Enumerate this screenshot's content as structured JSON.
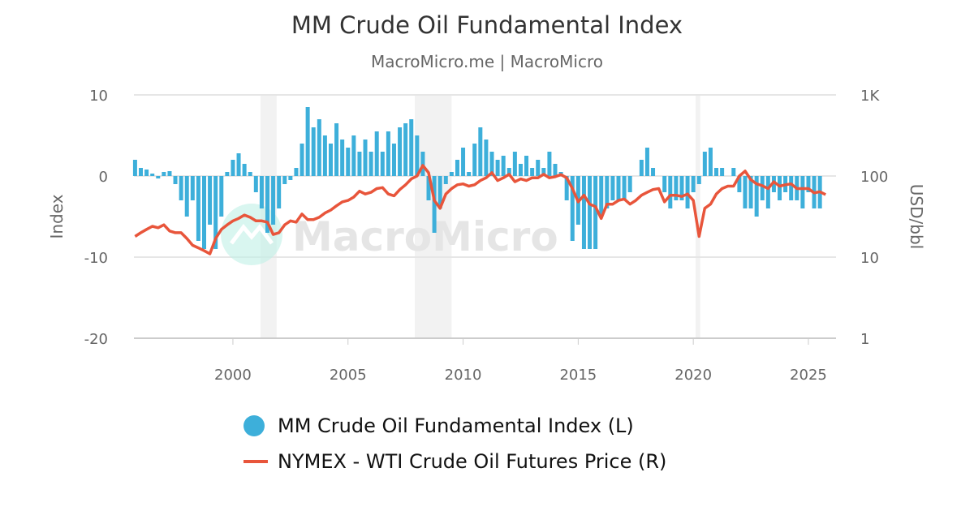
{
  "chart_data": {
    "type": "bar+line",
    "title": "MM Crude Oil Fundamental Index",
    "subtitle": "MacroMicro.me | MacroMicro",
    "watermark": "MacroMicro",
    "ylabel_left": "Index",
    "ylabel_right": "USD/bbl",
    "ylim_left": [
      -20,
      10
    ],
    "yticks_left": [
      "10",
      "0",
      "-10",
      "-20"
    ],
    "ylim_right": [
      1,
      1000
    ],
    "right_scale": "log",
    "yticks_right": [
      "1K",
      "100",
      "10",
      "1"
    ],
    "xlim": [
      1995.7,
      2026.2
    ],
    "xticks": [
      "2000",
      "2005",
      "2010",
      "2015",
      "2020",
      "2025"
    ],
    "grid": true,
    "legend_placement": "bottom",
    "recessions": [
      [
        2001.2,
        2001.9
      ],
      [
        2007.9,
        2009.5
      ],
      [
        2020.1,
        2020.3
      ]
    ],
    "colors": {
      "bars": "#3dafda",
      "line": "#e8553b",
      "recession": "#f2f2f2",
      "grid": "#e6e6e6"
    },
    "x_start": 1995.75,
    "x_step": 0.25,
    "series": [
      {
        "name": "MM Crude Oil Fundamental Index (L)",
        "type": "bar",
        "axis": "left",
        "values": [
          2,
          1,
          0.8,
          0.3,
          -0.3,
          0.5,
          0.6,
          -1,
          -3,
          -5,
          -3,
          -8,
          -9,
          -6,
          -9,
          -5,
          0.5,
          2,
          2.8,
          1.5,
          0.5,
          -2,
          -4,
          -7,
          -6,
          -4,
          -1,
          -0.5,
          1,
          4,
          8.5,
          6,
          7,
          5,
          4,
          6.5,
          4.5,
          3.5,
          5,
          3,
          4.5,
          3,
          5.5,
          3,
          5.5,
          4,
          6,
          6.5,
          7,
          5,
          3,
          -3,
          -7,
          -4,
          -1,
          0.5,
          2,
          3.5,
          0.5,
          4,
          6,
          4.5,
          3,
          2,
          2.5,
          1,
          3,
          1.5,
          2.5,
          1,
          2,
          1,
          3,
          1.5,
          0.5,
          -3,
          -8,
          -6,
          -9,
          -9,
          -9,
          -5,
          -4,
          -3,
          -3,
          -3,
          -2,
          0,
          2,
          3.5,
          1,
          0,
          -2,
          -4,
          -3,
          -3,
          -4,
          -2,
          -1,
          3,
          3.5,
          1,
          1,
          0,
          1,
          -2,
          -4,
          -4,
          -5,
          -3,
          -4,
          -2,
          -3,
          -2,
          -3,
          -3,
          -4,
          -2,
          -4,
          -4
        ]
      },
      {
        "name": "NYMEX - WTI Crude Oil Futures Price (R)",
        "type": "line",
        "axis": "right",
        "values": [
          18,
          20,
          22,
          24,
          23,
          25,
          21,
          20,
          20,
          17,
          14,
          13,
          12,
          11,
          17,
          22,
          25,
          28,
          30,
          33,
          31,
          28,
          28,
          27,
          19,
          20,
          25,
          28,
          27,
          34,
          29,
          29,
          31,
          35,
          38,
          43,
          48,
          50,
          55,
          65,
          60,
          63,
          70,
          72,
          60,
          57,
          68,
          78,
          92,
          100,
          135,
          110,
          50,
          40,
          60,
          70,
          78,
          80,
          75,
          78,
          88,
          95,
          110,
          88,
          95,
          105,
          85,
          92,
          88,
          95,
          95,
          105,
          95,
          98,
          104,
          95,
          70,
          48,
          58,
          45,
          42,
          30,
          45,
          45,
          50,
          52,
          45,
          50,
          58,
          63,
          68,
          70,
          48,
          58,
          58,
          56,
          60,
          50,
          18,
          40,
          45,
          60,
          70,
          75,
          75,
          100,
          115,
          90,
          80,
          76,
          70,
          85,
          75,
          78,
          80,
          70,
          70,
          70,
          62,
          64,
          59
        ]
      }
    ]
  }
}
